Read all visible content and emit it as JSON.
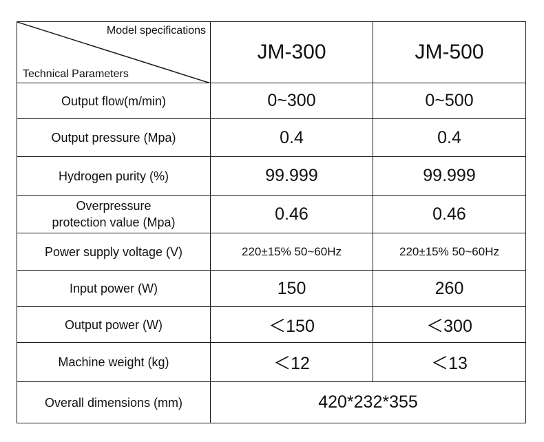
{
  "header": {
    "corner_top": "Model specifications",
    "corner_bottom": "Technical Parameters",
    "models": [
      "JM-300",
      "JM-500"
    ]
  },
  "rows": [
    {
      "param": "Output flow(m/min)",
      "v1": "0~300",
      "v2": "0~500"
    },
    {
      "param": "Output pressure (Mpa)",
      "v1": "0.4",
      "v2": "0.4"
    },
    {
      "param": "Hydrogen purity (%)",
      "v1": "99.999",
      "v2": "99.999"
    },
    {
      "param_line1": "Overpressure",
      "param_line2": "protection value (Mpa)",
      "v1": "0.46",
      "v2": "0.46"
    },
    {
      "param": "Power supply voltage (V)",
      "v1": "220±15% 50~60Hz",
      "v2": "220±15% 50~60Hz"
    },
    {
      "param": "Input power (W)",
      "v1": "150",
      "v2": "260"
    },
    {
      "param": "Output power (W)",
      "v1": "＜150",
      "v2": "＜300"
    },
    {
      "param": "Machine weight (kg)",
      "v1": "＜12",
      "v2": "＜13"
    },
    {
      "param": "Overall dimensions (mm)",
      "v_merged": "420*232*355"
    }
  ]
}
